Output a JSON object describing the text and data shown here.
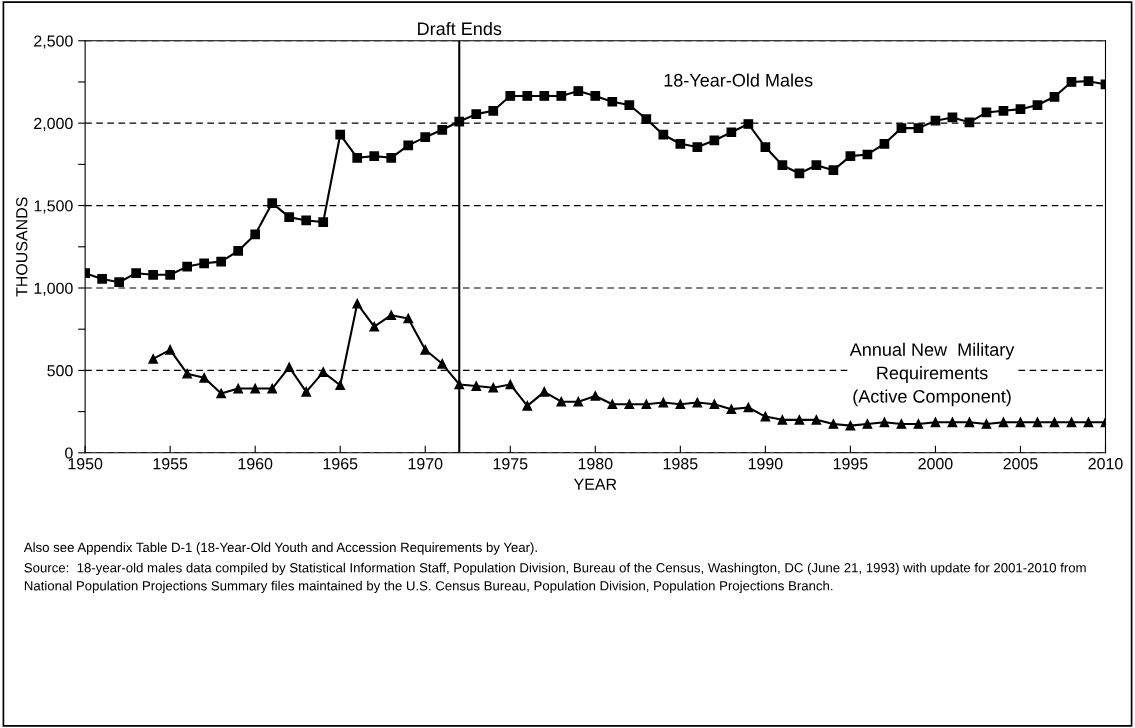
{
  "chart_data": {
    "type": "line",
    "xlabel": "YEAR",
    "ylabel": "THOUSANDS",
    "x": [
      1950,
      1951,
      1952,
      1953,
      1954,
      1955,
      1956,
      1957,
      1958,
      1959,
      1960,
      1961,
      1962,
      1963,
      1964,
      1965,
      1966,
      1967,
      1968,
      1969,
      1970,
      1971,
      1972,
      1973,
      1974,
      1975,
      1976,
      1977,
      1978,
      1979,
      1980,
      1981,
      1982,
      1983,
      1984,
      1985,
      1986,
      1987,
      1988,
      1989,
      1990,
      1991,
      1992,
      1993,
      1994,
      1995,
      1996,
      1997,
      1998,
      1999,
      2000,
      2001,
      2002,
      2003,
      2004,
      2005,
      2006,
      2007,
      2008,
      2009,
      2010
    ],
    "series": [
      {
        "name": "18-Year-Old Males",
        "color": "#000000",
        "marker": "square",
        "values": [
          1090,
          1055,
          1035,
          1090,
          1080,
          1080,
          1130,
          1150,
          1160,
          1225,
          1325,
          1515,
          1430,
          1410,
          1400,
          1930,
          1790,
          1800,
          1790,
          1865,
          1915,
          1960,
          2010,
          2055,
          2075,
          2165,
          2165,
          2165,
          2165,
          2195,
          2165,
          2130,
          2110,
          2025,
          1930,
          1875,
          1855,
          1895,
          1945,
          1995,
          1855,
          1745,
          1695,
          1745,
          1715,
          1800,
          1810,
          1875,
          1970,
          1970,
          2015,
          2035,
          2005,
          2065,
          2075,
          2085,
          2110,
          2160,
          2250,
          2255,
          2235
        ]
      },
      {
        "name": "Annual New  Military\nRequirements\n(Active Component)",
        "color": "#000000",
        "marker": "triangle",
        "values": [
          null,
          null,
          null,
          null,
          570,
          625,
          480,
          455,
          360,
          390,
          390,
          390,
          520,
          370,
          490,
          410,
          905,
          765,
          835,
          815,
          625,
          540,
          415,
          405,
          395,
          415,
          285,
          370,
          310,
          310,
          345,
          295,
          295,
          295,
          305,
          295,
          305,
          295,
          265,
          275,
          220,
          200,
          200,
          200,
          175,
          165,
          175,
          185,
          175,
          175,
          185,
          185,
          185,
          175,
          185,
          185,
          185,
          185,
          185,
          185,
          185
        ]
      }
    ],
    "xlim": [
      1950,
      2010
    ],
    "xticks": [
      1950,
      1955,
      1960,
      1965,
      1970,
      1975,
      1980,
      1985,
      1990,
      1995,
      2000,
      2005,
      2010
    ],
    "ylim": [
      0,
      2500
    ],
    "yticks": [
      0,
      {
        "value": 250,
        "label": null
      },
      {
        "value": 500,
        "label": "500"
      },
      {
        "value": 750,
        "label": null
      },
      {
        "value": 1000,
        "label": "1,000"
      },
      {
        "value": 1250,
        "label": null
      },
      {
        "value": 1500,
        "label": "1,500"
      },
      {
        "value": 1750,
        "label": null
      },
      {
        "value": 2000,
        "label": "2,000"
      },
      {
        "value": 2250,
        "label": null
      },
      {
        "value": 2500,
        "label": "2,500"
      }
    ],
    "grid": "y",
    "line_style": "solid",
    "legend": false,
    "ref_lines": [
      {
        "axis": "x",
        "value": 1972,
        "label": "Draft Ends",
        "color": "#000000"
      }
    ],
    "annotations": [
      "Also see Appendix Table D-1 (18-Year-Old Youth and Accession Requirements by Year).",
      "Source:  18-year-old males data compiled by Statistical Information Staff, Population Division, Bureau of the Census, Washington, DC (June 21, 1993) with update for 2001-2010 from National Population Projections Summary files maintained by the U.S. Census Bureau, Population Division, Population Projections Branch."
    ]
  }
}
